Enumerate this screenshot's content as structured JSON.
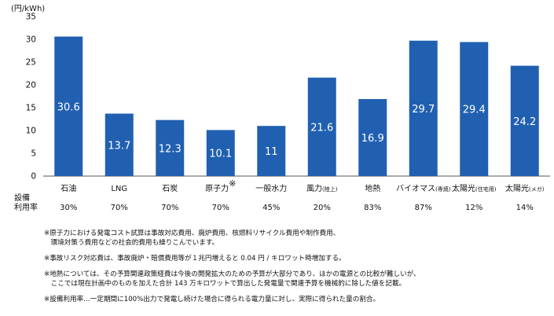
{
  "chart_data": {
    "type": "bar",
    "unit_label": "(円/kWh)",
    "categories": [
      {
        "main": "石油",
        "sub": ""
      },
      {
        "main": "LNG",
        "sub": ""
      },
      {
        "main": "石炭",
        "sub": ""
      },
      {
        "main": "原子力",
        "sub": "※"
      },
      {
        "main": "一般水力",
        "sub": ""
      },
      {
        "main": "風力",
        "sub": "(陸上)"
      },
      {
        "main": "地熱",
        "sub": ""
      },
      {
        "main": "バイオマス",
        "sub": "(専焼)"
      },
      {
        "main": "太陽光",
        "sub": "(住宅用)"
      },
      {
        "main": "太陽光",
        "sub": "(メガ)"
      }
    ],
    "values": [
      30.6,
      13.7,
      12.3,
      10.1,
      11,
      21.6,
      16.9,
      29.7,
      29.4,
      24.2
    ],
    "value_labels": [
      "30.6",
      "13.7",
      "12.3",
      "10.1",
      "11",
      "21.6",
      "16.9",
      "29.7",
      "29.4",
      "24.2"
    ],
    "yticks": [
      0,
      5,
      10,
      15,
      20,
      25,
      30,
      35
    ],
    "ylim": [
      0,
      35
    ],
    "bar_color": "#2160b0",
    "label_color": "#ffffff",
    "capacity_factor_label": [
      "設備",
      "利用率"
    ],
    "capacity_factors": [
      "30%",
      "70%",
      "70%",
      "70%",
      "45%",
      "20%",
      "83%",
      "87%",
      "12%",
      "14%"
    ]
  },
  "notes": [
    "※原子力における発電コスト試算は事故対応費用、廃炉費用、核燃料リサイクル費用や制作費用、\n　環境対策う費用などの社会的費用も繰りこんでいます。",
    "※事故リスク対応費は、事故廃炉・賠償費用等が１兆円増えると 0.04 円 / キロワット時増加する。",
    "※地熱については、その予算関連政策経費は今後の開発拡大のための予算が大部分であり、ほかの電源との比較が難しいが、\n　ここでは現在計画中のものを加えた合計 143 万キロワットで算出した発電量で関連予算を機械的に除した値を記載。",
    "※設備利用率…一定期間に100%出力で発電し続けた場合に得られる電力量に対し、実際に得られた量の割合。"
  ]
}
